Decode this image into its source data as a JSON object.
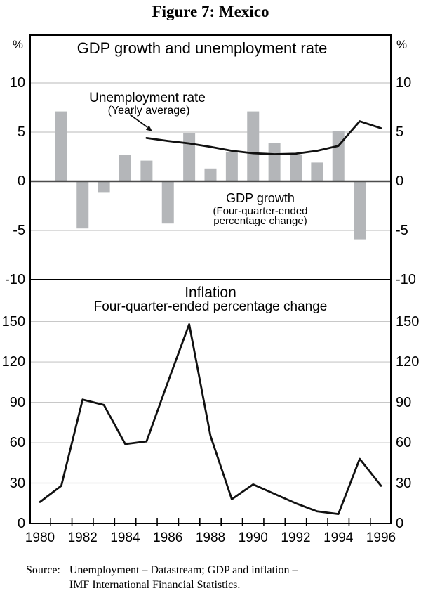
{
  "figure_title": "Figure 7: Mexico",
  "panels": {
    "top": {
      "title": "GDP growth and unemployment rate",
      "unit_left": "%",
      "unit_right": "%",
      "annotations": {
        "unemployment": {
          "line1": "Unemployment rate",
          "line2": "(Yearly average)"
        },
        "gdp": {
          "line1": "GDP growth",
          "line2": "(Four-quarter-ended",
          "line3": "percentage change)"
        }
      }
    },
    "bottom": {
      "title": "Inflation",
      "subtitle": "Four-quarter-ended percentage change"
    }
  },
  "source_note": {
    "label": "Source:",
    "line1": "Unemployment – Datastream; GDP and inflation –",
    "line2": "IMF International Financial Statistics."
  },
  "colors": {
    "bar": "#b4b6b9",
    "line": "#111111",
    "grid": "#c8c8c8",
    "zero_line": "#4d4d4d",
    "frame": "#000000",
    "text": "#000000"
  },
  "chart_data": [
    {
      "type": "bar",
      "title": "GDP growth and unemployment rate",
      "ylabel": "%",
      "ylim": [
        -10,
        14.9
      ],
      "y_ticks": [
        10,
        5,
        0,
        -5,
        -10
      ],
      "xlim": [
        1979.5,
        1996.5
      ],
      "grid": true,
      "series": [
        {
          "name": "GDP growth",
          "description": "Four-quarter-ended percentage change",
          "type": "bar",
          "x": [
            1981,
            1982,
            1983,
            1984,
            1985,
            1986,
            1987,
            1988,
            1989,
            1990,
            1991,
            1992,
            1993,
            1994,
            1995
          ],
          "values": [
            7.1,
            -4.8,
            -1.1,
            2.7,
            2.1,
            -4.3,
            4.9,
            1.3,
            3.0,
            7.1,
            3.9,
            2.7,
            1.9,
            5.1,
            -5.9
          ]
        },
        {
          "name": "Unemployment rate",
          "description": "Yearly average",
          "type": "line",
          "x": [
            1985,
            1986,
            1987,
            1988,
            1989,
            1990,
            1991,
            1992,
            1993,
            1994,
            1995,
            1996
          ],
          "values": [
            4.4,
            4.1,
            3.85,
            3.5,
            3.1,
            2.85,
            2.75,
            2.8,
            3.1,
            3.6,
            6.1,
            5.4
          ]
        }
      ]
    },
    {
      "type": "line",
      "title": "Inflation",
      "subtitle": "Four-quarter-ended percentage change",
      "ylim": [
        0,
        181
      ],
      "y_ticks": [
        150,
        120,
        90,
        60,
        30,
        0
      ],
      "xlim": [
        1979.5,
        1996.5
      ],
      "x_tick_labels": [
        1980,
        1982,
        1984,
        1986,
        1988,
        1990,
        1992,
        1994,
        1996
      ],
      "grid": true,
      "series": [
        {
          "name": "Inflation",
          "type": "line",
          "x": [
            1980,
            1981,
            1982,
            1983,
            1984,
            1985,
            1986,
            1987,
            1988,
            1989,
            1990,
            1991,
            1992,
            1993,
            1994,
            1995,
            1996
          ],
          "values": [
            16,
            28,
            92,
            88,
            59,
            61,
            105,
            148,
            65,
            18,
            29,
            22,
            15,
            9,
            7,
            48,
            28
          ]
        }
      ]
    }
  ]
}
